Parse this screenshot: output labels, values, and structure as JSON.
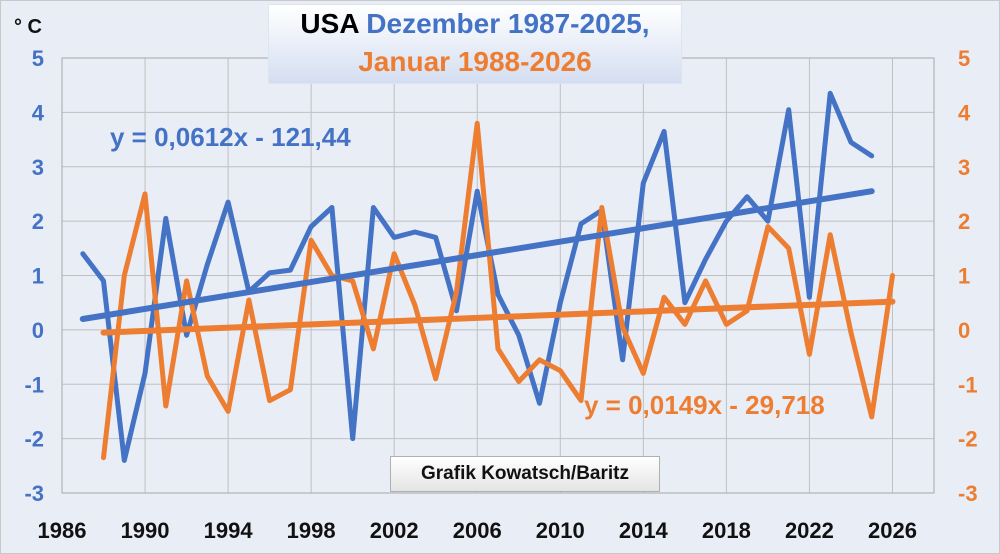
{
  "title": {
    "part1": "USA",
    "part2": " Dezember 1987-2025,",
    "part3": "Januar 1988-2026"
  },
  "unit_label": "° C",
  "credit": "Grafik Kowatsch/Baritz",
  "colors": {
    "dezember": "#4472c4",
    "januar": "#ed7d31",
    "grid": "#c0c0c0",
    "background": "#e9edf6"
  },
  "chart_data": {
    "type": "line",
    "xlim": [
      1986,
      2028
    ],
    "ylim": [
      -3,
      5
    ],
    "x_ticks": [
      "1986",
      "1990",
      "1994",
      "1998",
      "2002",
      "2006",
      "2010",
      "2014",
      "2018",
      "2022",
      "2026"
    ],
    "y_ticks_left": [
      "-3",
      "-2",
      "-1",
      "0",
      "1",
      "2",
      "3",
      "4",
      "5"
    ],
    "y_ticks_right": [
      "-3",
      "-2",
      "-1",
      "0",
      "1",
      "2",
      "3",
      "4",
      "5"
    ],
    "grid": true,
    "series": [
      {
        "color": "#4472c4",
        "x": [
          1987,
          1988,
          1989,
          1990,
          1991,
          1992,
          1993,
          1994,
          1995,
          1996,
          1997,
          1998,
          1999,
          2000,
          2001,
          2002,
          2003,
          2004,
          2005,
          2006,
          2007,
          2008,
          2009,
          2010,
          2011,
          2012,
          2013,
          2014,
          2015,
          2016,
          2017,
          2018,
          2019,
          2020,
          2021,
          2022,
          2023,
          2024,
          2025
        ],
        "values": [
          1.4,
          0.9,
          -2.4,
          -0.8,
          2.05,
          -0.1,
          1.2,
          2.35,
          0.7,
          1.05,
          1.1,
          1.9,
          2.25,
          -2.0,
          2.25,
          1.7,
          1.8,
          1.7,
          0.35,
          2.55,
          0.65,
          -0.1,
          -1.35,
          0.5,
          1.95,
          2.2,
          -0.55,
          2.7,
          3.65,
          0.5,
          1.3,
          2.0,
          2.45,
          2.0,
          4.05,
          0.6,
          4.35,
          3.45,
          3.2
        ],
        "trend": {
          "equation": "y = 0,0612x - 121,44",
          "x": [
            1987,
            2025
          ],
          "values": [
            0.2,
            2.55
          ]
        }
      },
      {
        "color": "#ed7d31",
        "x": [
          1988,
          1989,
          1990,
          1991,
          1992,
          1993,
          1994,
          1995,
          1996,
          1997,
          1998,
          1999,
          2000,
          2001,
          2002,
          2003,
          2004,
          2005,
          2006,
          2007,
          2008,
          2009,
          2010,
          2011,
          2012,
          2013,
          2014,
          2015,
          2016,
          2017,
          2018,
          2019,
          2020,
          2021,
          2022,
          2023,
          2024,
          2025,
          2026
        ],
        "values": [
          -2.35,
          1.0,
          2.5,
          -1.4,
          0.9,
          -0.85,
          -1.5,
          0.55,
          -1.3,
          -1.1,
          1.65,
          1.0,
          0.9,
          -0.35,
          1.4,
          0.45,
          -0.9,
          0.7,
          3.8,
          -0.35,
          -0.95,
          -0.55,
          -0.75,
          -1.3,
          2.25,
          0.05,
          -0.8,
          0.6,
          0.1,
          0.9,
          0.1,
          0.35,
          1.9,
          1.5,
          -0.45,
          1.75,
          -0.05,
          -1.6,
          1.0
        ],
        "trend": {
          "equation": "y = 0,0149x - 29,718",
          "x": [
            1988,
            2026
          ],
          "values": [
            -0.05,
            0.52
          ]
        }
      }
    ]
  }
}
